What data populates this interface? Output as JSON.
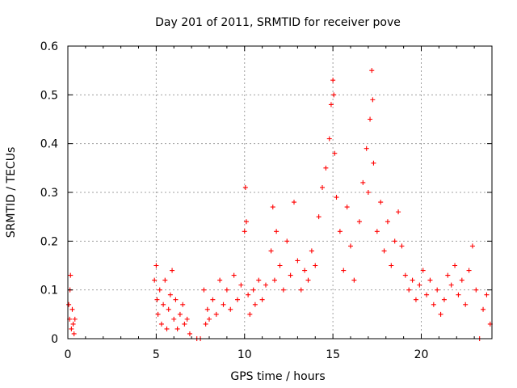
{
  "chart_data": {
    "type": "scatter",
    "title": "Day 201 of 2011, SRMTID for receiver pove",
    "xlabel": "GPS time / hours",
    "ylabel": "SRMTID / TECUs",
    "xlim": [
      0,
      24
    ],
    "ylim": [
      0,
      0.6
    ],
    "x_ticks": [
      0,
      5,
      10,
      15,
      20
    ],
    "x_tick_labels": [
      "0",
      "5",
      "10",
      "15",
      "20"
    ],
    "y_ticks": [
      0,
      0.1,
      0.2,
      0.3,
      0.4,
      0.5,
      0.6
    ],
    "y_tick_labels": [
      "0",
      "0.1",
      "0.2",
      "0.3",
      "0.4",
      "0.5",
      "0.6"
    ],
    "grid": true,
    "marker": "+",
    "series": [
      {
        "name": "SRMTID",
        "color": "#ff0000",
        "points": [
          {
            "x": 0.05,
            "y": 0.07
          },
          {
            "x": 0.1,
            "y": 0.04
          },
          {
            "x": 0.12,
            "y": 0.1
          },
          {
            "x": 0.15,
            "y": 0.13
          },
          {
            "x": 0.2,
            "y": 0.02
          },
          {
            "x": 0.25,
            "y": 0.06
          },
          {
            "x": 0.3,
            "y": 0.03
          },
          {
            "x": 0.35,
            "y": 0.01
          },
          {
            "x": 0.4,
            "y": 0.04
          },
          {
            "x": 4.9,
            "y": 0.12
          },
          {
            "x": 5.0,
            "y": 0.15
          },
          {
            "x": 5.05,
            "y": 0.08
          },
          {
            "x": 5.1,
            "y": 0.05
          },
          {
            "x": 5.2,
            "y": 0.1
          },
          {
            "x": 5.3,
            "y": 0.03
          },
          {
            "x": 5.4,
            "y": 0.07
          },
          {
            "x": 5.5,
            "y": 0.12
          },
          {
            "x": 5.6,
            "y": 0.02
          },
          {
            "x": 5.7,
            "y": 0.06
          },
          {
            "x": 5.8,
            "y": 0.09
          },
          {
            "x": 5.9,
            "y": 0.14
          },
          {
            "x": 6.0,
            "y": 0.04
          },
          {
            "x": 6.1,
            "y": 0.08
          },
          {
            "x": 6.2,
            "y": 0.02
          },
          {
            "x": 6.35,
            "y": 0.05
          },
          {
            "x": 6.5,
            "y": 0.07
          },
          {
            "x": 6.6,
            "y": 0.03
          },
          {
            "x": 6.75,
            "y": 0.04
          },
          {
            "x": 6.9,
            "y": 0.01
          },
          {
            "x": 7.3,
            "y": 0.0
          },
          {
            "x": 7.5,
            "y": 0.0
          },
          {
            "x": 7.7,
            "y": 0.1
          },
          {
            "x": 7.8,
            "y": 0.03
          },
          {
            "x": 7.9,
            "y": 0.06
          },
          {
            "x": 8.0,
            "y": 0.04
          },
          {
            "x": 8.2,
            "y": 0.08
          },
          {
            "x": 8.4,
            "y": 0.05
          },
          {
            "x": 8.6,
            "y": 0.12
          },
          {
            "x": 8.8,
            "y": 0.07
          },
          {
            "x": 9.0,
            "y": 0.1
          },
          {
            "x": 9.2,
            "y": 0.06
          },
          {
            "x": 9.4,
            "y": 0.13
          },
          {
            "x": 9.6,
            "y": 0.08
          },
          {
            "x": 9.8,
            "y": 0.11
          },
          {
            "x": 10.0,
            "y": 0.22
          },
          {
            "x": 10.05,
            "y": 0.31
          },
          {
            "x": 10.1,
            "y": 0.24
          },
          {
            "x": 10.2,
            "y": 0.09
          },
          {
            "x": 10.3,
            "y": 0.05
          },
          {
            "x": 10.5,
            "y": 0.1
          },
          {
            "x": 10.6,
            "y": 0.07
          },
          {
            "x": 10.8,
            "y": 0.12
          },
          {
            "x": 11.0,
            "y": 0.08
          },
          {
            "x": 11.2,
            "y": 0.11
          },
          {
            "x": 11.5,
            "y": 0.18
          },
          {
            "x": 11.6,
            "y": 0.27
          },
          {
            "x": 11.7,
            "y": 0.12
          },
          {
            "x": 11.8,
            "y": 0.22
          },
          {
            "x": 12.0,
            "y": 0.15
          },
          {
            "x": 12.2,
            "y": 0.1
          },
          {
            "x": 12.4,
            "y": 0.2
          },
          {
            "x": 12.6,
            "y": 0.13
          },
          {
            "x": 12.8,
            "y": 0.28
          },
          {
            "x": 13.0,
            "y": 0.16
          },
          {
            "x": 13.2,
            "y": 0.1
          },
          {
            "x": 13.4,
            "y": 0.14
          },
          {
            "x": 13.6,
            "y": 0.12
          },
          {
            "x": 13.8,
            "y": 0.18
          },
          {
            "x": 14.0,
            "y": 0.15
          },
          {
            "x": 14.2,
            "y": 0.25
          },
          {
            "x": 14.4,
            "y": 0.31
          },
          {
            "x": 14.6,
            "y": 0.35
          },
          {
            "x": 14.8,
            "y": 0.41
          },
          {
            "x": 14.9,
            "y": 0.48
          },
          {
            "x": 15.0,
            "y": 0.53
          },
          {
            "x": 15.05,
            "y": 0.5
          },
          {
            "x": 15.1,
            "y": 0.38
          },
          {
            "x": 15.2,
            "y": 0.29
          },
          {
            "x": 15.4,
            "y": 0.22
          },
          {
            "x": 15.6,
            "y": 0.14
          },
          {
            "x": 15.8,
            "y": 0.27
          },
          {
            "x": 16.0,
            "y": 0.19
          },
          {
            "x": 16.2,
            "y": 0.12
          },
          {
            "x": 16.5,
            "y": 0.24
          },
          {
            "x": 16.7,
            "y": 0.32
          },
          {
            "x": 16.9,
            "y": 0.39
          },
          {
            "x": 17.0,
            "y": 0.3
          },
          {
            "x": 17.1,
            "y": 0.45
          },
          {
            "x": 17.2,
            "y": 0.55
          },
          {
            "x": 17.25,
            "y": 0.49
          },
          {
            "x": 17.3,
            "y": 0.36
          },
          {
            "x": 17.5,
            "y": 0.22
          },
          {
            "x": 17.7,
            "y": 0.28
          },
          {
            "x": 17.9,
            "y": 0.18
          },
          {
            "x": 18.1,
            "y": 0.24
          },
          {
            "x": 18.3,
            "y": 0.15
          },
          {
            "x": 18.5,
            "y": 0.2
          },
          {
            "x": 18.7,
            "y": 0.26
          },
          {
            "x": 18.9,
            "y": 0.19
          },
          {
            "x": 19.1,
            "y": 0.13
          },
          {
            "x": 19.3,
            "y": 0.1
          },
          {
            "x": 19.5,
            "y": 0.12
          },
          {
            "x": 19.7,
            "y": 0.08
          },
          {
            "x": 19.9,
            "y": 0.11
          },
          {
            "x": 20.1,
            "y": 0.14
          },
          {
            "x": 20.3,
            "y": 0.09
          },
          {
            "x": 20.5,
            "y": 0.12
          },
          {
            "x": 20.7,
            "y": 0.07
          },
          {
            "x": 20.9,
            "y": 0.1
          },
          {
            "x": 21.1,
            "y": 0.05
          },
          {
            "x": 21.3,
            "y": 0.08
          },
          {
            "x": 21.5,
            "y": 0.13
          },
          {
            "x": 21.7,
            "y": 0.11
          },
          {
            "x": 21.9,
            "y": 0.15
          },
          {
            "x": 22.1,
            "y": 0.09
          },
          {
            "x": 22.3,
            "y": 0.12
          },
          {
            "x": 22.5,
            "y": 0.07
          },
          {
            "x": 22.7,
            "y": 0.14
          },
          {
            "x": 22.9,
            "y": 0.19
          },
          {
            "x": 23.1,
            "y": 0.1
          },
          {
            "x": 23.3,
            "y": 0.0
          },
          {
            "x": 23.5,
            "y": 0.06
          },
          {
            "x": 23.7,
            "y": 0.09
          },
          {
            "x": 23.9,
            "y": 0.03
          }
        ]
      }
    ]
  }
}
